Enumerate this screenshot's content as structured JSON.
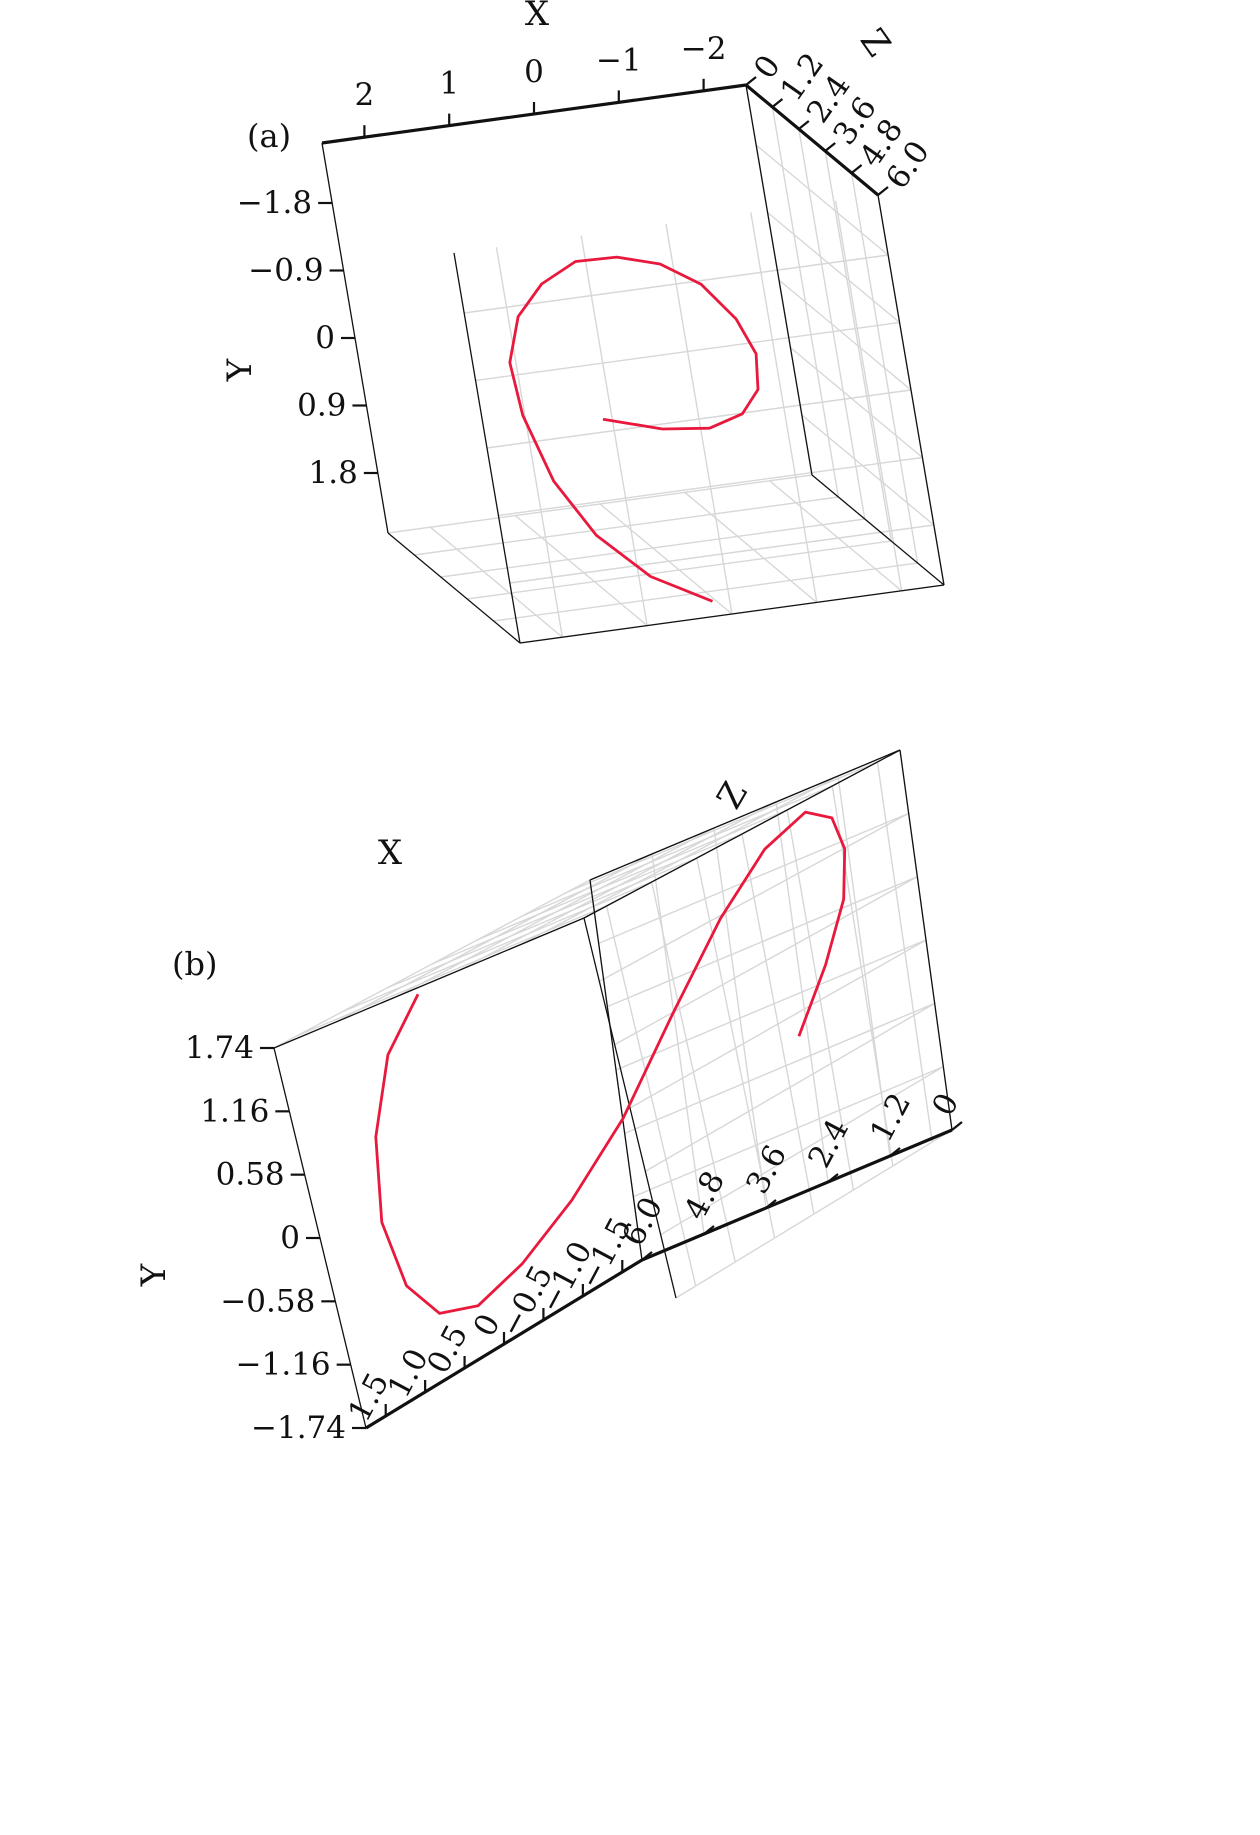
{
  "chart_data": [
    {
      "panel_label": "(a)",
      "type": "line",
      "view": "oblique from front (spiral seen near face-on)",
      "xlabel": "X",
      "ylabel": "Y",
      "zlabel": "Z",
      "x_ticks": [
        "2",
        "1",
        "0",
        "−1",
        "−2"
      ],
      "y_ticks": [
        "−1.8",
        "−0.9",
        "0",
        "0.9",
        "1.8"
      ],
      "z_ticks": [
        "0",
        "1.2",
        "2.4",
        "3.6",
        "4.8",
        "6.0"
      ],
      "xlim": [
        2.5,
        -2.5
      ],
      "ylim": [
        -2.6,
        2.6
      ],
      "zlim": [
        0,
        6.0
      ],
      "grid": true,
      "line_color": "#e8193c",
      "series": [
        {
          "x": [
            -0.2,
            -0.8,
            -1.28,
            -1.6,
            -1.74,
            -1.7,
            -1.45,
            -1.05,
            -0.55,
            0.0,
            0.55,
            1.05,
            1.45,
            1.7,
            1.74,
            1.6,
            1.28,
            0.8,
            0.2
          ],
          "y": [
            1.5,
            1.65,
            1.64,
            1.4,
            1.0,
            0.42,
            -0.18,
            -0.78,
            -1.2,
            -1.45,
            -1.55,
            -1.4,
            -1.1,
            -0.6,
            0.0,
            0.8,
            1.5,
            2.05,
            2.4
          ],
          "z": [
            0.0,
            0.3,
            0.6,
            1.0,
            1.4,
            1.8,
            2.2,
            2.5,
            2.8,
            3.1,
            3.4,
            3.7,
            4.0,
            4.3,
            4.7,
            5.1,
            5.4,
            5.7,
            6.0
          ]
        }
      ]
    },
    {
      "panel_label": "(b)",
      "type": "line",
      "view": "oblique from side (spiral seen edge-wise)",
      "xlabel": "X",
      "ylabel": "Y",
      "zlabel": "Z",
      "x_ticks": [
        "1.5",
        "1.0",
        "0.5",
        "0",
        "−0.5",
        "−1.0",
        "−1.5"
      ],
      "y_ticks": [
        "1.74",
        "1.16",
        "0.58",
        "0",
        "−0.58",
        "−1.16",
        "−1.74"
      ],
      "z_ticks": [
        "6.0",
        "4.8",
        "3.6",
        "2.4",
        "1.2",
        "0"
      ],
      "xlim": [
        1.75,
        -1.75
      ],
      "ylim": [
        -1.74,
        1.74
      ],
      "zlim": [
        6.0,
        0
      ],
      "grid": true,
      "line_color": "#e8193c",
      "series": [
        {
          "x": [
            -0.2,
            -0.8,
            -1.28,
            -1.6,
            -1.74,
            -1.7,
            -1.45,
            -1.05,
            -0.55,
            0.0,
            0.55,
            1.05,
            1.45,
            1.7,
            1.74,
            1.6,
            1.28,
            0.8,
            0.2
          ],
          "y": [
            -0.2,
            0.25,
            0.7,
            1.1,
            1.4,
            1.55,
            1.4,
            1.0,
            0.4,
            -0.25,
            -0.7,
            -1.0,
            -1.15,
            -1.05,
            -0.7,
            -0.1,
            0.6,
            1.2,
            1.55
          ],
          "z": [
            0.0,
            0.3,
            0.6,
            1.0,
            1.4,
            1.8,
            2.2,
            2.5,
            2.8,
            3.1,
            3.4,
            3.7,
            4.0,
            4.3,
            4.7,
            5.1,
            5.4,
            5.7,
            6.0
          ]
        }
      ]
    }
  ]
}
